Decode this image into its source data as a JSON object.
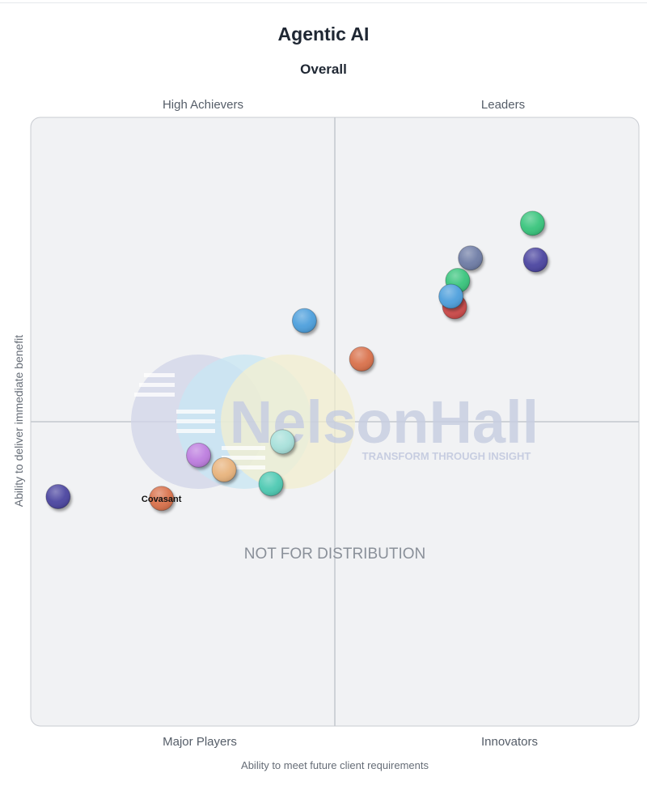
{
  "chart_data": {
    "type": "scatter",
    "title": "Agentic AI",
    "subtitle": "Overall",
    "xlabel": "Ability to meet future client requirements",
    "ylabel": "Ability to deliver immediate benefit",
    "xlim": [
      0,
      100
    ],
    "ylim": [
      0,
      100
    ],
    "quadrants": {
      "top_left": "High Achievers",
      "top_right": "Leaders",
      "bottom_left": "Major Players",
      "bottom_right": "Innovators"
    },
    "watermark": {
      "brand": "NelsonHall",
      "tagline": "TRANSFORM THROUGH INSIGHT",
      "notice": "NOT FOR DISTRIBUTION"
    },
    "points": [
      {
        "x": 82.5,
        "y": 82.6,
        "color": "#37c47b"
      },
      {
        "x": 83.0,
        "y": 76.6,
        "color": "#4b44a0"
      },
      {
        "x": 72.3,
        "y": 76.9,
        "color": "#6e7ca5"
      },
      {
        "x": 70.2,
        "y": 73.2,
        "color": "#37c47b"
      },
      {
        "x": 69.7,
        "y": 68.9,
        "color": "#cc4a4a"
      },
      {
        "x": 69.1,
        "y": 70.6,
        "color": "#4d9fdc"
      },
      {
        "x": 45.0,
        "y": 66.6,
        "color": "#4d9fdc"
      },
      {
        "x": 54.4,
        "y": 60.3,
        "color": "#d9714c"
      },
      {
        "x": 41.4,
        "y": 46.7,
        "color": "#a7e0da"
      },
      {
        "x": 27.6,
        "y": 44.5,
        "color": "#bd7ddf"
      },
      {
        "x": 31.8,
        "y": 42.1,
        "color": "#e8b37c"
      },
      {
        "x": 39.5,
        "y": 39.8,
        "color": "#4dc9b2"
      },
      {
        "x": 4.5,
        "y": 37.7,
        "color": "#4b44a0"
      },
      {
        "x": 21.5,
        "y": 37.4,
        "color": "#d9714c",
        "label": "Covasant"
      }
    ]
  }
}
